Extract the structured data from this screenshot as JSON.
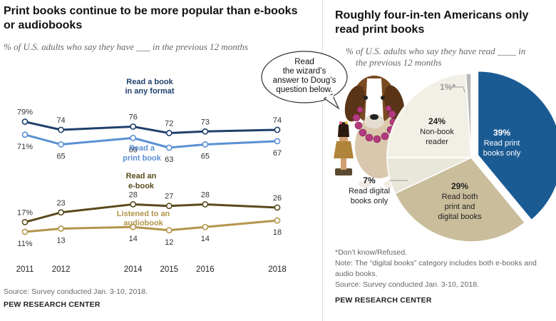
{
  "left": {
    "title_line1": "Print books continue to be more popular than e-books",
    "title_line2": "or audiobooks",
    "subtitle": "% of U.S. adults who say they have ___ in the previous 12 months",
    "source": "Source: Survey conducted Jan. 3-10, 2018.",
    "brand": "PEW RESEARCH CENTER"
  },
  "right": {
    "title_line1": "Roughly four-in-ten Americans only",
    "title_line2": "read print books",
    "subtitle_line1": "% of U.S. adults who say they have read ____ in",
    "subtitle_line2": "the previous 12 months",
    "note1": "*Don’t know/Refused.",
    "note2": "Note: The “digital books” category includes both e-books and",
    "note3": "audio books.",
    "source": "Source: Survey conducted Jan. 3-10, 2018.",
    "brand": "PEW RESEARCH CENTER"
  },
  "bubble": {
    "line1": "Read",
    "line2": "the wizard’s",
    "line3": "answer to Doug’s",
    "line4": "question below."
  },
  "colors": {
    "any_format": "#1f3f6b",
    "print": "#5b8fd4",
    "ebook": "#5a4a1c",
    "audio": "#b3954a",
    "print_only_slice": "#1b5b94",
    "both_slice": "#c9bd9b",
    "digital_slice": "#e9e6da",
    "nonbook_slice": "#f2f0e6",
    "dk_slice": "#b7b7b7"
  },
  "chart_data": [
    {
      "type": "line",
      "x": [
        2011,
        2012,
        2014,
        2015,
        2016,
        2018
      ],
      "x_tick_labels": [
        "2011",
        "2012",
        "2014",
        "2015",
        "2016",
        "2018"
      ],
      "ylim": [
        0,
        100
      ],
      "grid": false,
      "series": [
        {
          "name": "Read a book in any format",
          "label_lines": [
            "Read a book",
            "in any format"
          ],
          "color": "#1f3f6b",
          "values": [
            79,
            74,
            76,
            72,
            73,
            74
          ],
          "value_labels": [
            "79%",
            "74",
            "76",
            "72",
            "73",
            "74"
          ]
        },
        {
          "name": "Read a print book",
          "label_lines": [
            "Read a",
            "print book"
          ],
          "color": "#5b8fd4",
          "values": [
            71,
            65,
            69,
            63,
            65,
            67
          ],
          "value_labels": [
            "71%",
            "65",
            "69",
            "63",
            "65",
            "67"
          ]
        },
        {
          "name": "Read an e-book",
          "label_lines": [
            "Read an",
            "e-book"
          ],
          "color": "#5a4a1c",
          "values": [
            17,
            23,
            28,
            27,
            28,
            26
          ],
          "value_labels": [
            "17%",
            "23",
            "28",
            "27",
            "28",
            "26"
          ]
        },
        {
          "name": "Listened to an audiobook",
          "label_lines": [
            "Listened to an",
            "audiobook"
          ],
          "color": "#b3954a",
          "values": [
            11,
            13,
            14,
            12,
            14,
            18
          ],
          "value_labels": [
            "11%",
            "13",
            "14",
            "12",
            "14",
            "18"
          ]
        }
      ]
    },
    {
      "type": "pie",
      "slices": [
        {
          "name": "Read print books only",
          "value": 39,
          "value_label": "39%",
          "label_lines": [
            "Read print",
            "books only"
          ],
          "color": "#1b5b94"
        },
        {
          "name": "Read both print and digital books",
          "value": 29,
          "value_label": "29%",
          "label_lines": [
            "Read both",
            "print and",
            "digital books"
          ],
          "color": "#c9bd9b"
        },
        {
          "name": "Read digital books only",
          "value": 7,
          "value_label": "7%",
          "label_lines": [
            "Read digital",
            "books only"
          ],
          "color": "#e9e6da"
        },
        {
          "name": "Non-book reader",
          "value": 24,
          "value_label": "24%",
          "label_lines": [
            "Non-book",
            "reader"
          ],
          "color": "#f2f0e6"
        },
        {
          "name": "Don't know/Refused",
          "value": 1,
          "value_label": "1%*",
          "label_lines": [],
          "color": "#b7b7b7"
        }
      ]
    }
  ]
}
